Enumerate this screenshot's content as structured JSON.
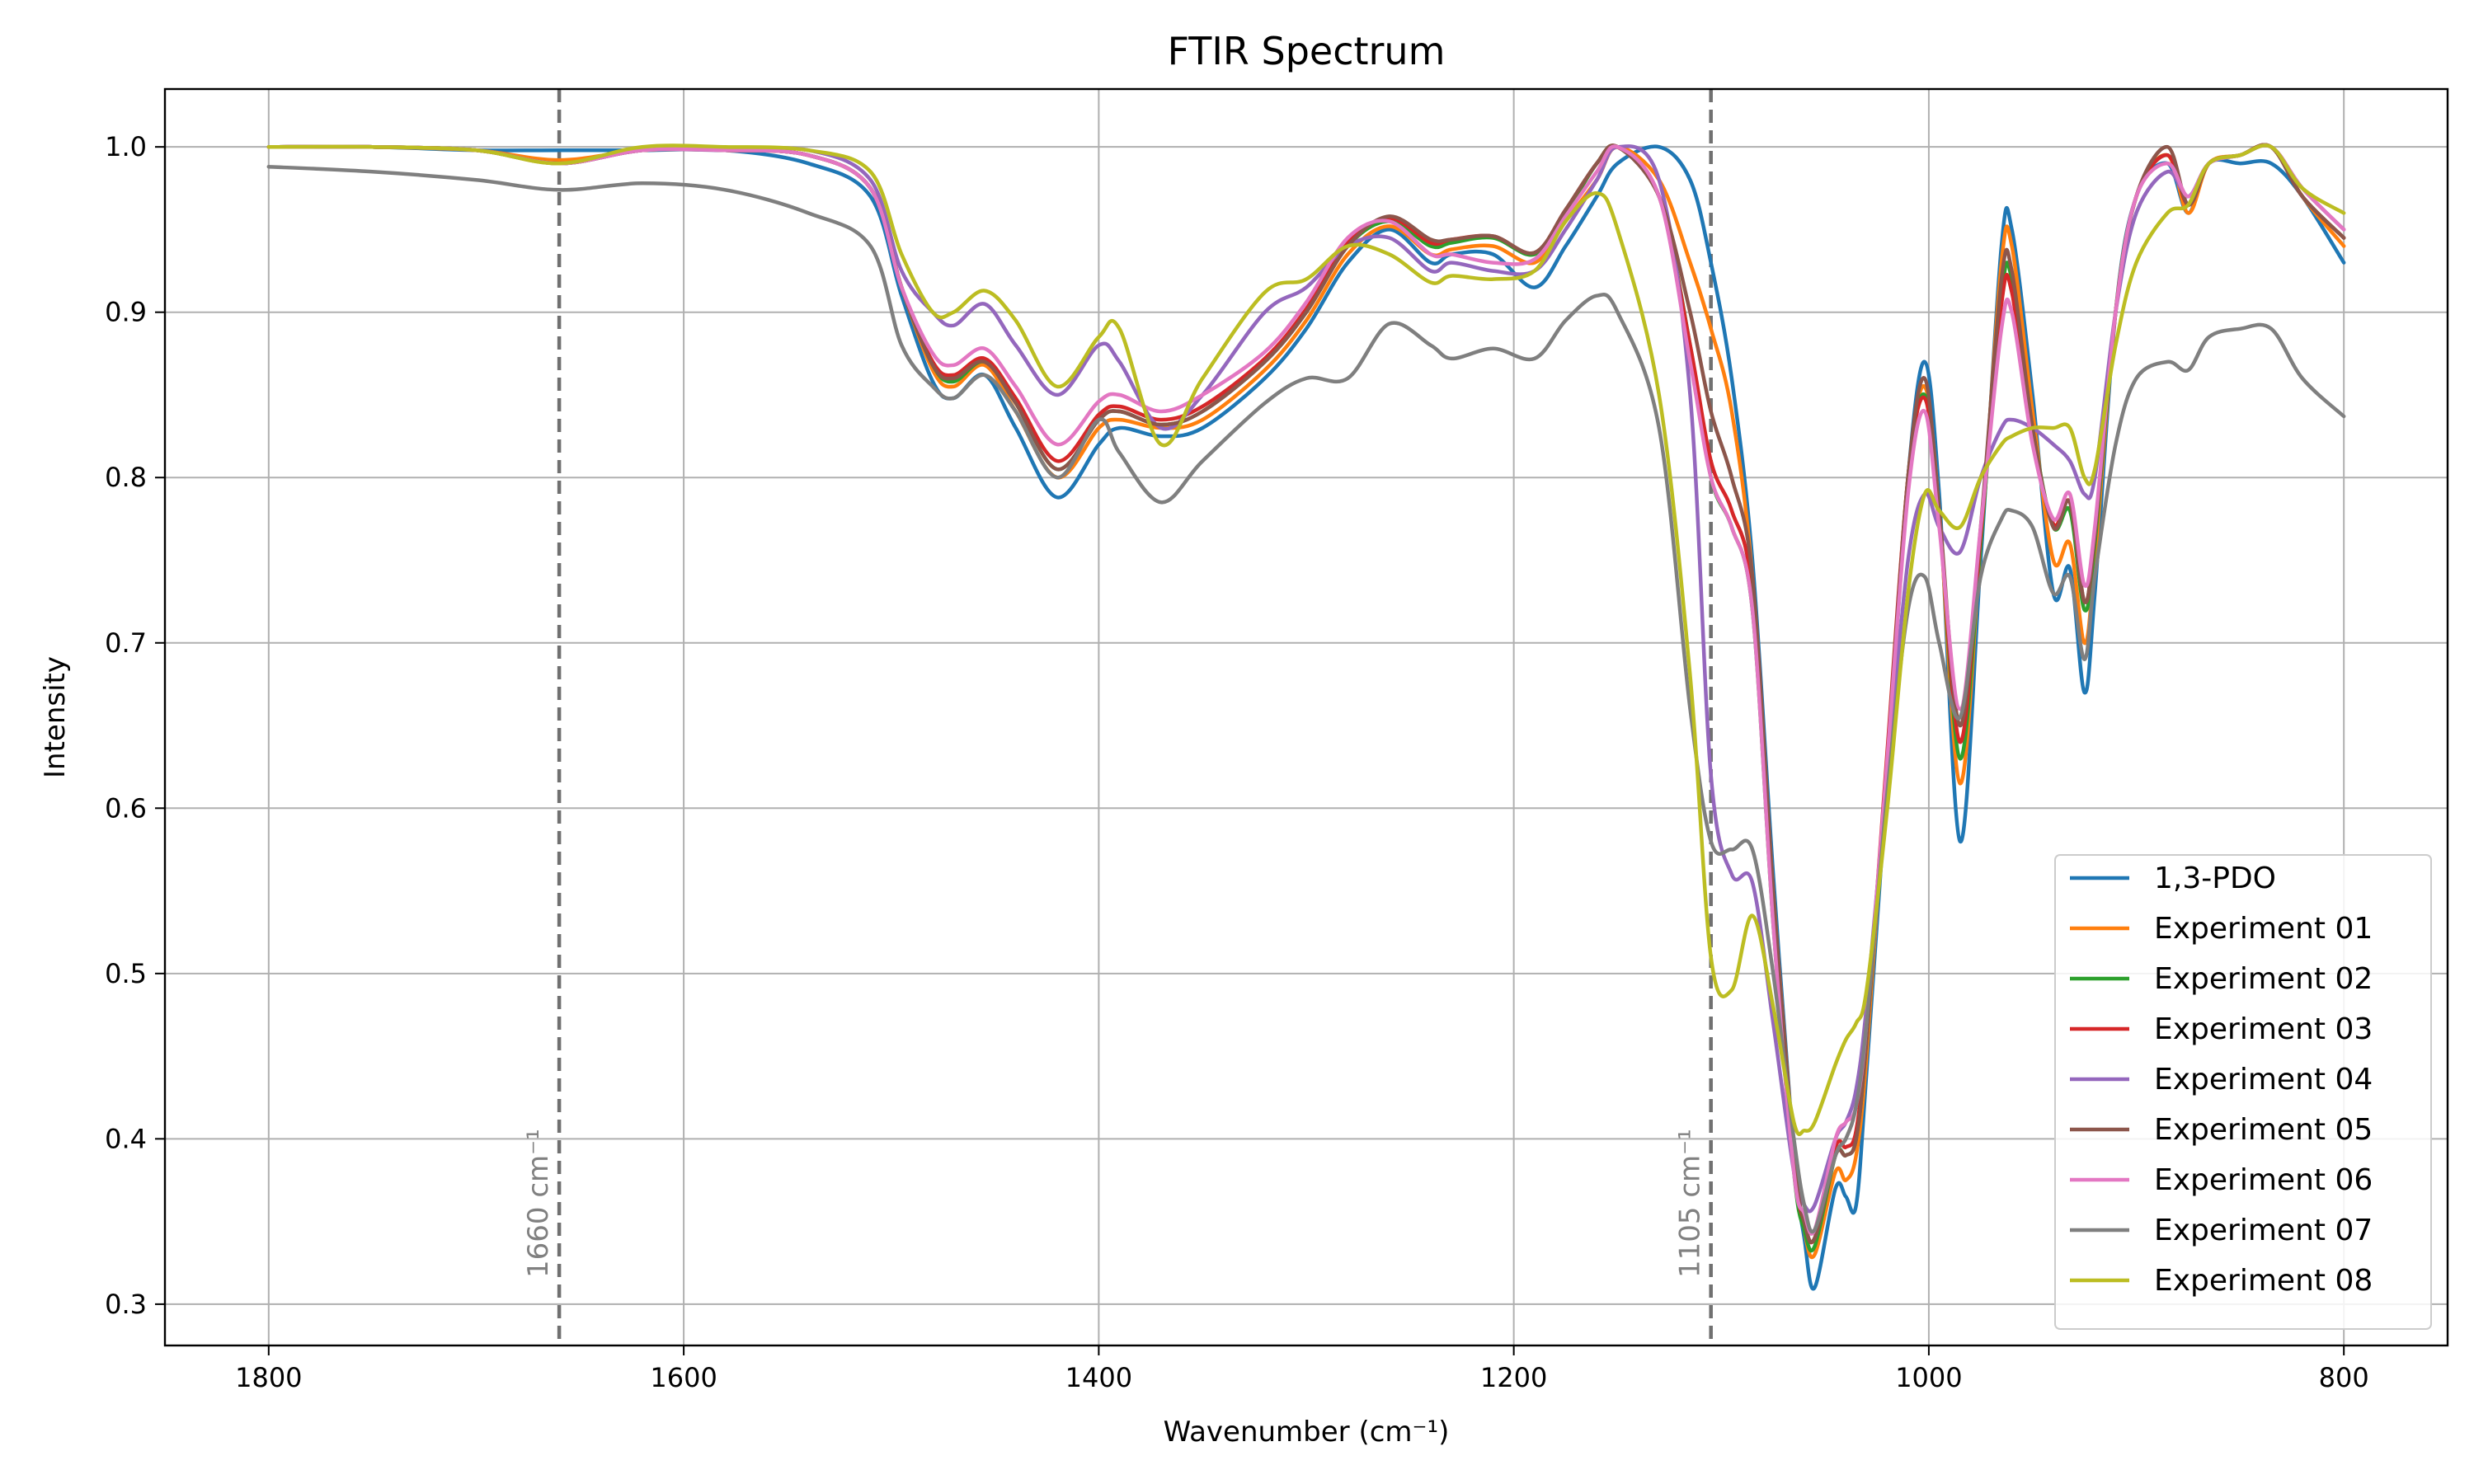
{
  "chart_data": {
    "type": "line",
    "title": "FTIR Spectrum",
    "xlabel": "Wavenumber (cm⁻¹)",
    "ylabel": "Intensity",
    "xlim": [
      1850,
      750
    ],
    "ylim": [
      0.275,
      1.035
    ],
    "x_reversed": true,
    "grid": true,
    "legend_position": "lower-right",
    "x_ticks": [
      1800,
      1600,
      1400,
      1200,
      1000,
      800
    ],
    "y_ticks": [
      0.3,
      0.4,
      0.5,
      0.6,
      0.7,
      0.8,
      0.9,
      1.0
    ],
    "reference_lines": [
      {
        "x": 1660,
        "label": "1660 cm⁻¹"
      },
      {
        "x": 1105,
        "label": "1105 cm⁻¹"
      }
    ],
    "x": [
      1800,
      1750,
      1700,
      1660,
      1620,
      1580,
      1540,
      1510,
      1495,
      1480,
      1470,
      1455,
      1440,
      1420,
      1400,
      1390,
      1370,
      1350,
      1320,
      1300,
      1280,
      1260,
      1240,
      1230,
      1210,
      1190,
      1175,
      1160,
      1150,
      1130,
      1115,
      1105,
      1095,
      1085,
      1075,
      1065,
      1060,
      1055,
      1045,
      1040,
      1035,
      1030,
      1020,
      1010,
      1002,
      995,
      985,
      975,
      965,
      960,
      950,
      940,
      932,
      925,
      920,
      910,
      900,
      885,
      875,
      865,
      850,
      835,
      820,
      800
    ],
    "series": [
      {
        "name": "1,3-PDO",
        "color": "#1f77b4",
        "values": [
          1.0,
          1.0,
          0.998,
          0.998,
          0.998,
          0.998,
          0.99,
          0.97,
          0.91,
          0.858,
          0.848,
          0.862,
          0.83,
          0.788,
          0.82,
          0.83,
          0.825,
          0.83,
          0.86,
          0.89,
          0.93,
          0.95,
          0.93,
          0.935,
          0.935,
          0.915,
          0.94,
          0.97,
          0.99,
          1.0,
          0.98,
          0.93,
          0.86,
          0.75,
          0.56,
          0.39,
          0.34,
          0.31,
          0.37,
          0.365,
          0.36,
          0.44,
          0.62,
          0.8,
          0.87,
          0.79,
          0.58,
          0.75,
          0.94,
          0.95,
          0.85,
          0.73,
          0.745,
          0.67,
          0.73,
          0.9,
          0.97,
          0.99,
          0.96,
          0.99,
          0.99,
          0.99,
          0.97,
          0.93
        ]
      },
      {
        "name": "Experiment 01",
        "color": "#ff7f0e",
        "values": [
          1.0,
          1.0,
          0.998,
          0.992,
          0.998,
          0.998,
          0.995,
          0.975,
          0.915,
          0.865,
          0.855,
          0.868,
          0.84,
          0.8,
          0.83,
          0.835,
          0.83,
          0.835,
          0.865,
          0.895,
          0.935,
          0.952,
          0.935,
          0.938,
          0.94,
          0.93,
          0.955,
          0.98,
          1.0,
          0.98,
          0.93,
          0.89,
          0.84,
          0.74,
          0.55,
          0.39,
          0.345,
          0.33,
          0.38,
          0.375,
          0.39,
          0.45,
          0.63,
          0.8,
          0.855,
          0.78,
          0.615,
          0.76,
          0.93,
          0.94,
          0.84,
          0.75,
          0.76,
          0.7,
          0.75,
          0.9,
          0.97,
          0.995,
          0.96,
          0.99,
          0.995,
          1.0,
          0.97,
          0.94
        ]
      },
      {
        "name": "Experiment 02",
        "color": "#2ca02c",
        "values": [
          1.0,
          1.0,
          0.998,
          0.99,
          0.998,
          0.998,
          0.995,
          0.975,
          0.915,
          0.868,
          0.858,
          0.87,
          0.845,
          0.805,
          0.835,
          0.84,
          0.832,
          0.84,
          0.87,
          0.9,
          0.94,
          0.955,
          0.94,
          0.942,
          0.945,
          0.935,
          0.96,
          0.99,
          1.0,
          0.97,
          0.88,
          0.8,
          0.77,
          0.72,
          0.53,
          0.38,
          0.345,
          0.335,
          0.39,
          0.39,
          0.4,
          0.46,
          0.63,
          0.8,
          0.85,
          0.78,
          0.63,
          0.76,
          0.91,
          0.92,
          0.83,
          0.77,
          0.78,
          0.72,
          0.76,
          0.9,
          0.97,
          0.995,
          0.965,
          0.99,
          0.995,
          1.0,
          0.97,
          0.945
        ]
      },
      {
        "name": "Experiment 03",
        "color": "#d62728",
        "values": [
          1.0,
          1.0,
          0.998,
          0.99,
          0.998,
          0.998,
          0.995,
          0.975,
          0.915,
          0.87,
          0.862,
          0.872,
          0.848,
          0.81,
          0.838,
          0.843,
          0.835,
          0.843,
          0.872,
          0.902,
          0.942,
          0.957,
          0.942,
          0.944,
          0.946,
          0.936,
          0.962,
          0.99,
          1.0,
          0.97,
          0.88,
          0.81,
          0.78,
          0.73,
          0.54,
          0.385,
          0.35,
          0.34,
          0.395,
          0.395,
          0.405,
          0.465,
          0.635,
          0.8,
          0.848,
          0.778,
          0.64,
          0.765,
          0.905,
          0.912,
          0.825,
          0.772,
          0.785,
          0.725,
          0.765,
          0.9,
          0.97,
          0.995,
          0.965,
          0.99,
          0.995,
          1.0,
          0.97,
          0.945
        ]
      },
      {
        "name": "Experiment 04",
        "color": "#9467bd",
        "values": [
          1.0,
          1.0,
          0.998,
          0.99,
          0.998,
          0.998,
          0.998,
          0.98,
          0.925,
          0.9,
          0.892,
          0.905,
          0.88,
          0.85,
          0.88,
          0.87,
          0.83,
          0.85,
          0.9,
          0.915,
          0.94,
          0.945,
          0.925,
          0.93,
          0.925,
          0.925,
          0.95,
          0.98,
          1.0,
          0.98,
          0.85,
          0.62,
          0.56,
          0.555,
          0.47,
          0.38,
          0.36,
          0.36,
          0.4,
          0.41,
          0.43,
          0.48,
          0.62,
          0.75,
          0.79,
          0.77,
          0.755,
          0.8,
          0.83,
          0.835,
          0.83,
          0.82,
          0.81,
          0.79,
          0.8,
          0.9,
          0.96,
          0.985,
          0.97,
          0.99,
          0.995,
          1.0,
          0.975,
          0.95
        ]
      },
      {
        "name": "Experiment 05",
        "color": "#8c564b",
        "values": [
          1.0,
          1.0,
          0.998,
          0.99,
          0.998,
          0.998,
          0.995,
          0.975,
          0.915,
          0.868,
          0.86,
          0.87,
          0.845,
          0.805,
          0.835,
          0.84,
          0.832,
          0.84,
          0.87,
          0.9,
          0.94,
          0.958,
          0.944,
          0.944,
          0.946,
          0.936,
          0.962,
          0.99,
          1.0,
          0.97,
          0.9,
          0.84,
          0.8,
          0.74,
          0.55,
          0.39,
          0.35,
          0.34,
          0.39,
          0.39,
          0.4,
          0.46,
          0.63,
          0.8,
          0.86,
          0.78,
          0.65,
          0.77,
          0.92,
          0.925,
          0.83,
          0.77,
          0.785,
          0.725,
          0.765,
          0.9,
          0.97,
          1.0,
          0.965,
          0.99,
          0.995,
          1.0,
          0.97,
          0.945
        ]
      },
      {
        "name": "Experiment 06",
        "color": "#e377c2",
        "values": [
          1.0,
          1.0,
          0.998,
          0.99,
          0.998,
          0.998,
          0.995,
          0.975,
          0.915,
          0.875,
          0.868,
          0.878,
          0.855,
          0.82,
          0.846,
          0.85,
          0.84,
          0.85,
          0.876,
          0.906,
          0.945,
          0.955,
          0.935,
          0.935,
          0.93,
          0.932,
          0.958,
          0.985,
          1.0,
          0.97,
          0.87,
          0.8,
          0.77,
          0.72,
          0.53,
          0.38,
          0.355,
          0.345,
          0.4,
          0.41,
          0.42,
          0.47,
          0.63,
          0.79,
          0.84,
          0.77,
          0.66,
          0.77,
          0.89,
          0.9,
          0.82,
          0.775,
          0.79,
          0.735,
          0.77,
          0.9,
          0.97,
          0.99,
          0.97,
          0.99,
          0.995,
          1.0,
          0.975,
          0.95
        ]
      },
      {
        "name": "Experiment 07",
        "color": "#7f7f7f",
        "values": [
          0.988,
          0.985,
          0.98,
          0.974,
          0.978,
          0.974,
          0.96,
          0.94,
          0.88,
          0.855,
          0.848,
          0.862,
          0.84,
          0.8,
          0.835,
          0.815,
          0.785,
          0.81,
          0.845,
          0.86,
          0.86,
          0.893,
          0.88,
          0.872,
          0.878,
          0.872,
          0.895,
          0.91,
          0.9,
          0.83,
          0.66,
          0.58,
          0.575,
          0.575,
          0.5,
          0.4,
          0.36,
          0.345,
          0.39,
          0.4,
          0.42,
          0.47,
          0.61,
          0.72,
          0.74,
          0.7,
          0.655,
          0.74,
          0.775,
          0.78,
          0.77,
          0.73,
          0.74,
          0.69,
          0.74,
          0.82,
          0.86,
          0.87,
          0.865,
          0.885,
          0.89,
          0.89,
          0.86,
          0.837
        ]
      },
      {
        "name": "Experiment 08",
        "color": "#bcbd22",
        "values": [
          1.0,
          1.0,
          0.998,
          0.99,
          1.0,
          1.0,
          0.998,
          0.985,
          0.935,
          0.9,
          0.9,
          0.913,
          0.895,
          0.855,
          0.885,
          0.89,
          0.82,
          0.86,
          0.912,
          0.92,
          0.94,
          0.935,
          0.918,
          0.922,
          0.92,
          0.925,
          0.955,
          0.972,
          0.95,
          0.85,
          0.68,
          0.51,
          0.49,
          0.535,
          0.48,
          0.41,
          0.405,
          0.41,
          0.445,
          0.46,
          0.47,
          0.49,
          0.6,
          0.73,
          0.79,
          0.78,
          0.77,
          0.8,
          0.82,
          0.825,
          0.83,
          0.83,
          0.83,
          0.8,
          0.805,
          0.88,
          0.93,
          0.96,
          0.965,
          0.99,
          0.995,
          1.0,
          0.975,
          0.96
        ]
      }
    ]
  }
}
